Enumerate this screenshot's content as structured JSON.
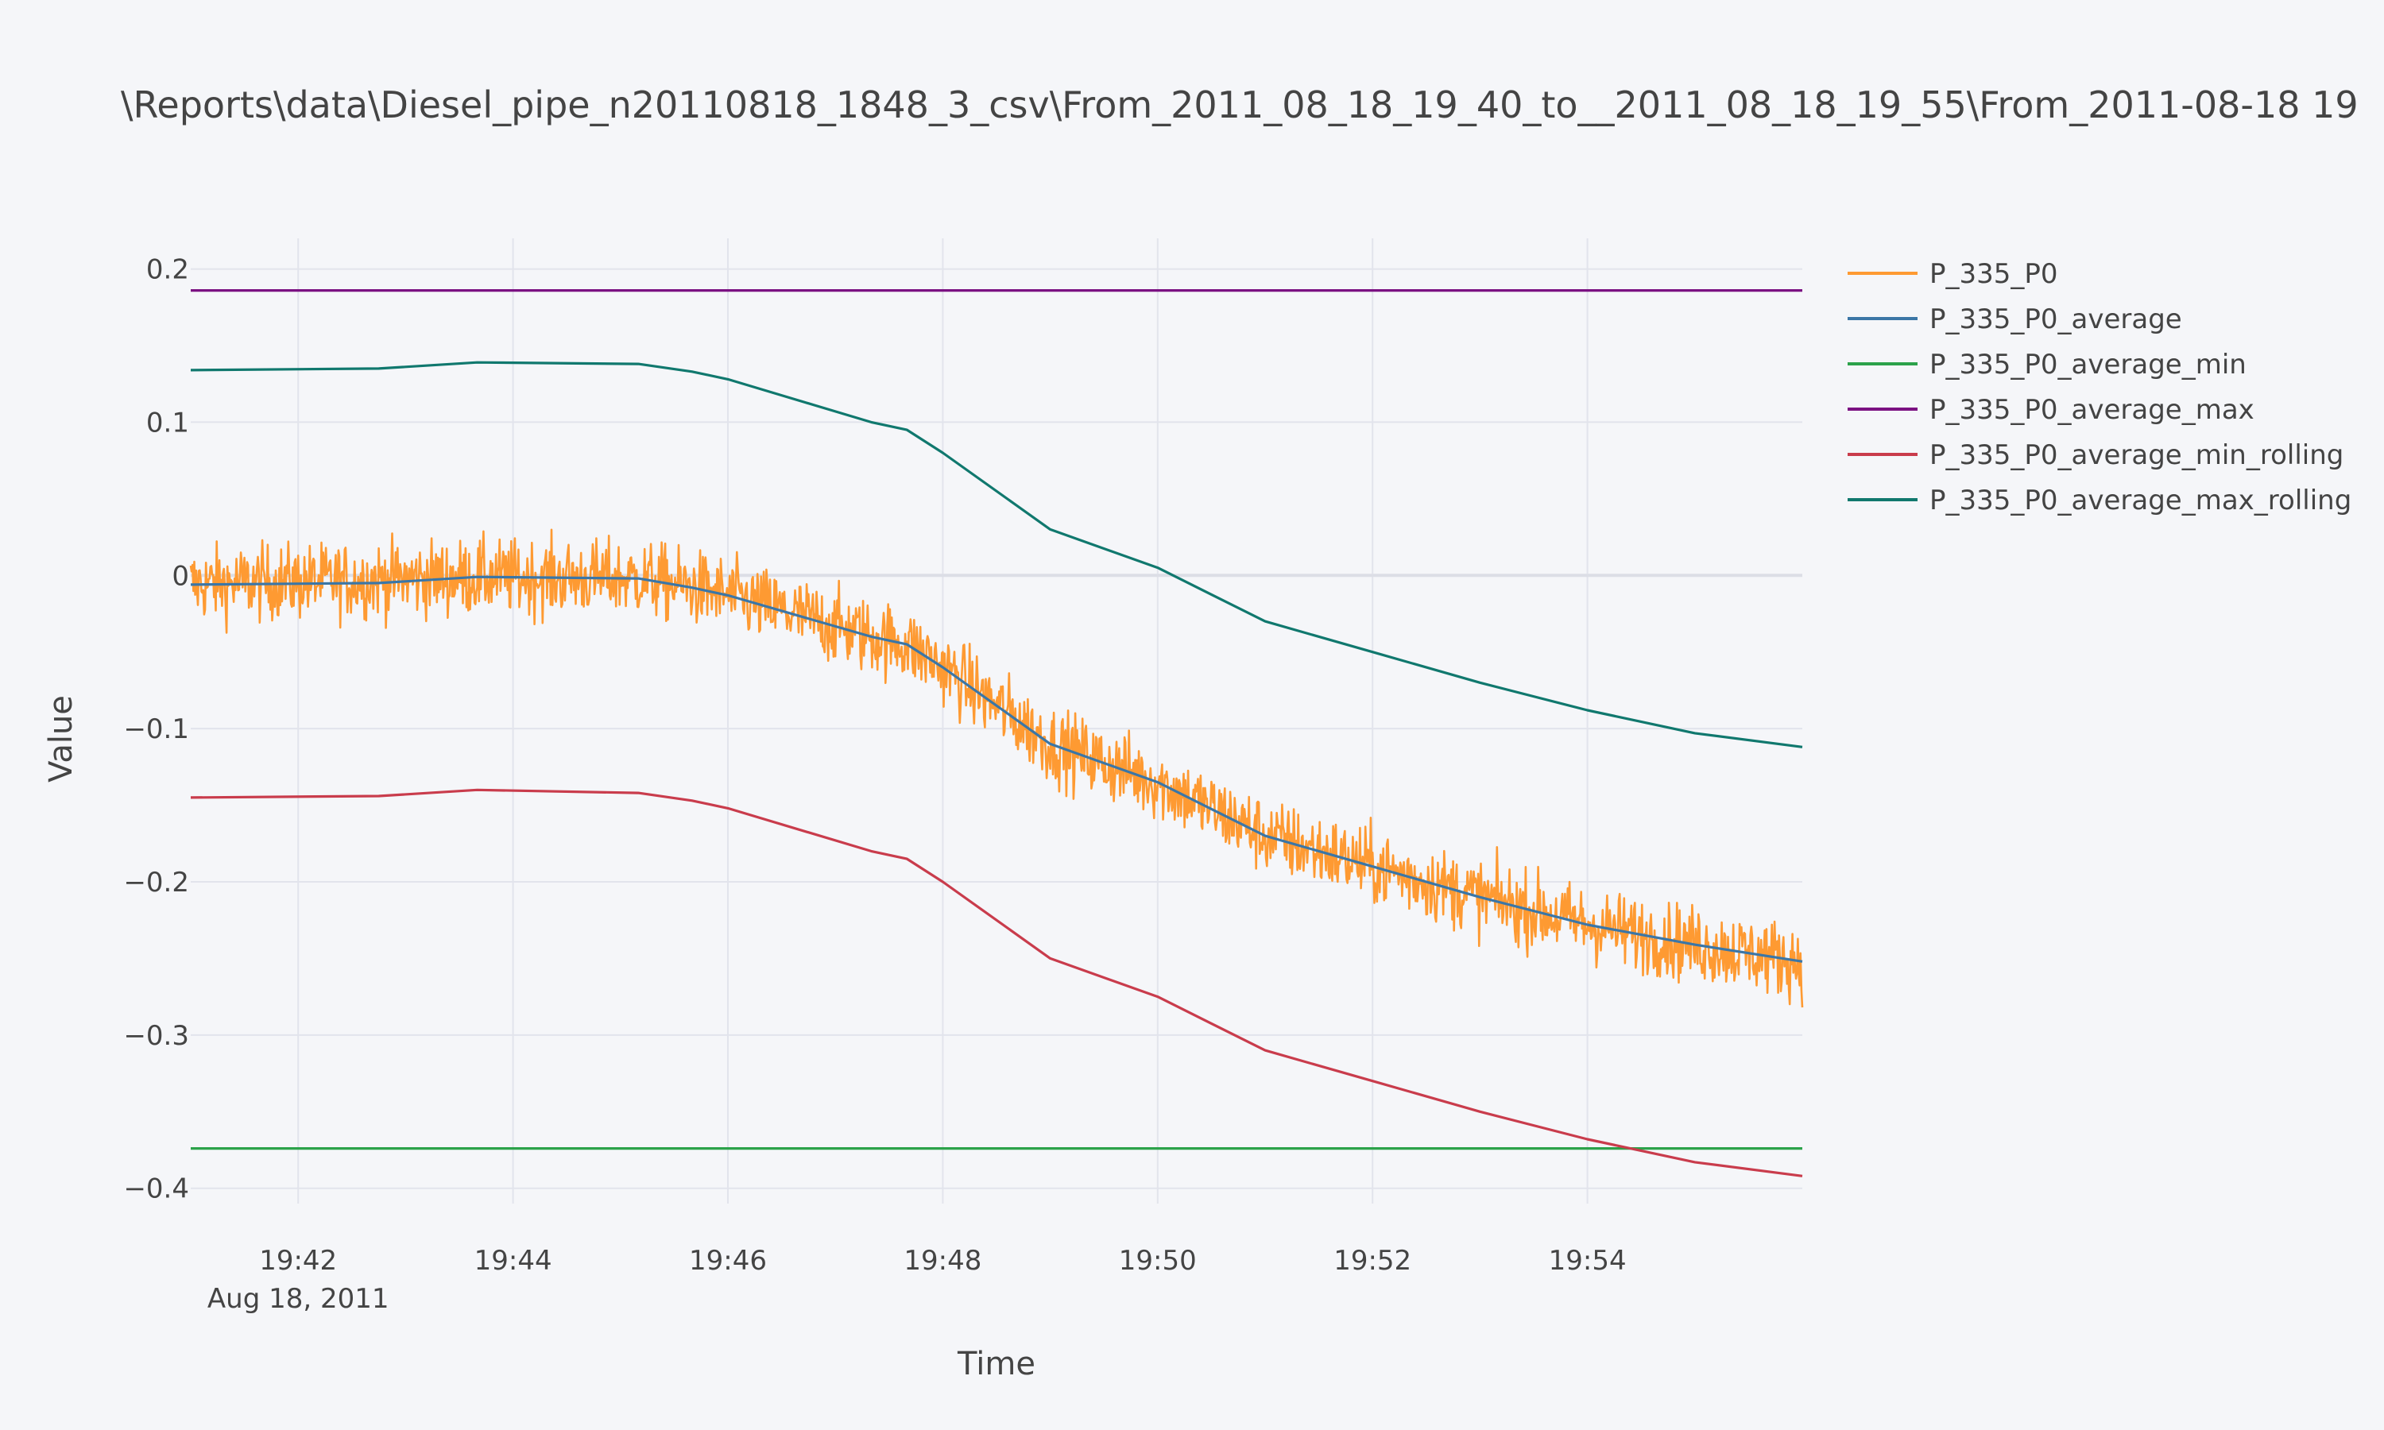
{
  "page": {
    "background": "#f5f6f9",
    "plot_background": "#f5f6f9",
    "grid_color": "#e2e4ec"
  },
  "chart_data": {
    "type": "line",
    "title": "\\Reports\\data\\Diesel_pipe_n20110818_1848_3_csv\\From_2011_08_18_19_40_to__2011_08_18_19_55\\From_2011-08-18 19",
    "xlabel": "Time",
    "ylabel": "Value",
    "x_axis": {
      "type": "date",
      "range": [
        "2011-08-18 19:41:00",
        "2011-08-18 19:56:00"
      ],
      "ticks": [
        {
          "value": "2011-08-18 19:42",
          "label": "19:42"
        },
        {
          "value": "2011-08-18 19:44",
          "label": "19:44"
        },
        {
          "value": "2011-08-18 19:46",
          "label": "19:46"
        },
        {
          "value": "2011-08-18 19:48",
          "label": "19:48"
        },
        {
          "value": "2011-08-18 19:50",
          "label": "19:50"
        },
        {
          "value": "2011-08-18 19:52",
          "label": "19:52"
        },
        {
          "value": "2011-08-18 19:54",
          "label": "19:54"
        }
      ],
      "date_label": "Aug 18, 2011"
    },
    "y_axis": {
      "range": [
        -0.41,
        0.22
      ],
      "ticks": [
        {
          "value": 0.2,
          "label": "0.2"
        },
        {
          "value": 0.1,
          "label": "0.1"
        },
        {
          "value": 0,
          "label": "0"
        },
        {
          "value": -0.1,
          "label": "−0.1"
        },
        {
          "value": -0.2,
          "label": "−0.2"
        },
        {
          "value": -0.3,
          "label": "−0.3"
        },
        {
          "value": -0.4,
          "label": "−0.4"
        }
      ]
    },
    "grid": true,
    "legend_position": "top-right",
    "series": [
      {
        "name": "P_335_P0",
        "color": "#fe9a32",
        "style": "noisy",
        "noise_amplitude": 0.022,
        "points": [
          [
            "2011-08-18 19:41:00",
            -0.006
          ],
          [
            "2011-08-18 19:43:40",
            -0.001
          ],
          [
            "2011-08-18 19:45:10",
            -0.002
          ],
          [
            "2011-08-18 19:45:40",
            -0.008
          ],
          [
            "2011-08-18 19:46:00",
            -0.013
          ],
          [
            "2011-08-18 19:47:20",
            -0.04
          ],
          [
            "2011-08-18 19:47:40",
            -0.045
          ],
          [
            "2011-08-18 19:48:00",
            -0.06
          ],
          [
            "2011-08-18 19:49:00",
            -0.11
          ],
          [
            "2011-08-18 19:50:00",
            -0.135
          ],
          [
            "2011-08-18 19:51:00",
            -0.17
          ],
          [
            "2011-08-18 19:52:00",
            -0.19
          ],
          [
            "2011-08-18 19:53:00",
            -0.21
          ],
          [
            "2011-08-18 19:54:00",
            -0.228
          ],
          [
            "2011-08-18 19:55:00",
            -0.241
          ],
          [
            "2011-08-18 19:56:00",
            -0.252
          ]
        ]
      },
      {
        "name": "P_335_P0_average",
        "color": "#3b76a6",
        "style": "line",
        "points": [
          [
            "2011-08-18 19:41:00",
            -0.006
          ],
          [
            "2011-08-18 19:42:45",
            -0.005
          ],
          [
            "2011-08-18 19:43:40",
            -0.001
          ],
          [
            "2011-08-18 19:45:10",
            -0.002
          ],
          [
            "2011-08-18 19:45:40",
            -0.008
          ],
          [
            "2011-08-18 19:46:00",
            -0.013
          ],
          [
            "2011-08-18 19:47:20",
            -0.04
          ],
          [
            "2011-08-18 19:47:40",
            -0.045
          ],
          [
            "2011-08-18 19:48:00",
            -0.06
          ],
          [
            "2011-08-18 19:49:00",
            -0.11
          ],
          [
            "2011-08-18 19:50:00",
            -0.135
          ],
          [
            "2011-08-18 19:51:00",
            -0.17
          ],
          [
            "2011-08-18 19:52:00",
            -0.19
          ],
          [
            "2011-08-18 19:53:00",
            -0.21
          ],
          [
            "2011-08-18 19:54:00",
            -0.228
          ],
          [
            "2011-08-18 19:55:00",
            -0.241
          ],
          [
            "2011-08-18 19:56:00",
            -0.252
          ]
        ]
      },
      {
        "name": "P_335_P0_average_min",
        "color": "#2ca24a",
        "style": "line",
        "points": [
          [
            "2011-08-18 19:41:00",
            -0.374
          ],
          [
            "2011-08-18 19:56:00",
            -0.374
          ]
        ]
      },
      {
        "name": "P_335_P0_average_max",
        "color": "#7b1182",
        "style": "line",
        "points": [
          [
            "2011-08-18 19:41:00",
            0.186
          ],
          [
            "2011-08-18 19:56:00",
            0.186
          ]
        ]
      },
      {
        "name": "P_335_P0_average_min_rolling",
        "color": "#c93c4c",
        "style": "line",
        "points": [
          [
            "2011-08-18 19:41:00",
            -0.145
          ],
          [
            "2011-08-18 19:42:45",
            -0.144
          ],
          [
            "2011-08-18 19:43:40",
            -0.14
          ],
          [
            "2011-08-18 19:45:10",
            -0.142
          ],
          [
            "2011-08-18 19:45:40",
            -0.147
          ],
          [
            "2011-08-18 19:46:00",
            -0.152
          ],
          [
            "2011-08-18 19:47:20",
            -0.18
          ],
          [
            "2011-08-18 19:47:40",
            -0.185
          ],
          [
            "2011-08-18 19:48:00",
            -0.2
          ],
          [
            "2011-08-18 19:49:00",
            -0.25
          ],
          [
            "2011-08-18 19:50:00",
            -0.275
          ],
          [
            "2011-08-18 19:51:00",
            -0.31
          ],
          [
            "2011-08-18 19:52:00",
            -0.33
          ],
          [
            "2011-08-18 19:53:00",
            -0.35
          ],
          [
            "2011-08-18 19:54:00",
            -0.368
          ],
          [
            "2011-08-18 19:55:00",
            -0.383
          ],
          [
            "2011-08-18 19:56:00",
            -0.392
          ]
        ]
      },
      {
        "name": "P_335_P0_average_max_rolling",
        "color": "#10786e",
        "style": "line",
        "points": [
          [
            "2011-08-18 19:41:00",
            0.134
          ],
          [
            "2011-08-18 19:42:45",
            0.135
          ],
          [
            "2011-08-18 19:43:40",
            0.139
          ],
          [
            "2011-08-18 19:45:10",
            0.138
          ],
          [
            "2011-08-18 19:45:40",
            0.133
          ],
          [
            "2011-08-18 19:46:00",
            0.128
          ],
          [
            "2011-08-18 19:47:20",
            0.1
          ],
          [
            "2011-08-18 19:47:40",
            0.095
          ],
          [
            "2011-08-18 19:48:00",
            0.08
          ],
          [
            "2011-08-18 19:49:00",
            0.03
          ],
          [
            "2011-08-18 19:50:00",
            0.005
          ],
          [
            "2011-08-18 19:51:00",
            -0.03
          ],
          [
            "2011-08-18 19:52:00",
            -0.05
          ],
          [
            "2011-08-18 19:53:00",
            -0.07
          ],
          [
            "2011-08-18 19:54:00",
            -0.088
          ],
          [
            "2011-08-18 19:55:00",
            -0.103
          ],
          [
            "2011-08-18 19:56:00",
            -0.112
          ]
        ]
      }
    ]
  }
}
